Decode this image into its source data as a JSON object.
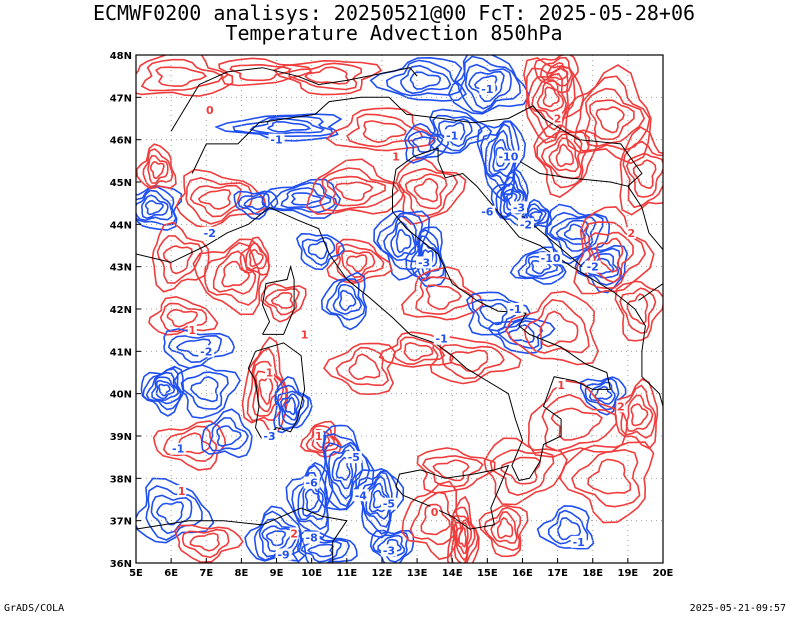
{
  "title": {
    "line1": "ECMWF0200 analisys: 20250521@00 FcT: 2025-05-28+06",
    "line2": "Temperature Advection 850hPa"
  },
  "footer": {
    "left": "GrADS/COLA",
    "right": "2025-05-21-09:57"
  },
  "map": {
    "lon_labels": [
      "5E",
      "6E",
      "7E",
      "8E",
      "9E",
      "10E",
      "11E",
      "12E",
      "13E",
      "14E",
      "15E",
      "16E",
      "17E",
      "18E",
      "19E",
      "20E"
    ],
    "lat_labels": [
      "48N",
      "47N",
      "46N",
      "45N",
      "44N",
      "43N",
      "42N",
      "41N",
      "40N",
      "39N",
      "38N",
      "37N",
      "36N"
    ],
    "lon_range": [
      5,
      20
    ],
    "lat_range": [
      36,
      48
    ],
    "grid": true,
    "colors": {
      "warm_advection": "#f03c3c",
      "cold_advection": "#2050f0",
      "coastline": "#000000",
      "grid": "#a0a0a0"
    },
    "contour_labels": [
      {
        "text": "0",
        "lon": 7.1,
        "lat": 46.7,
        "sign": "warm"
      },
      {
        "text": "-1",
        "lon": 9.0,
        "lat": 46.0,
        "sign": "cold"
      },
      {
        "text": "1",
        "lon": 12.4,
        "lat": 45.6,
        "sign": "warm"
      },
      {
        "text": "-1",
        "lon": 14.0,
        "lat": 46.1,
        "sign": "cold"
      },
      {
        "text": "-1",
        "lon": 15.0,
        "lat": 47.2,
        "sign": "cold"
      },
      {
        "text": "-10",
        "lon": 15.6,
        "lat": 45.6,
        "sign": "cold"
      },
      {
        "text": "2",
        "lon": 17.0,
        "lat": 46.5,
        "sign": "warm"
      },
      {
        "text": "-3",
        "lon": 15.9,
        "lat": 44.4,
        "sign": "cold"
      },
      {
        "text": "-6",
        "lon": 15.0,
        "lat": 44.3,
        "sign": "cold"
      },
      {
        "text": "-2",
        "lon": 16.1,
        "lat": 44.0,
        "sign": "cold"
      },
      {
        "text": "-2",
        "lon": 7.1,
        "lat": 43.8,
        "sign": "cold"
      },
      {
        "text": "-10",
        "lon": 16.8,
        "lat": 43.2,
        "sign": "cold"
      },
      {
        "text": "-2",
        "lon": 18.0,
        "lat": 43.0,
        "sign": "cold"
      },
      {
        "text": "2",
        "lon": 19.1,
        "lat": 43.8,
        "sign": "warm"
      },
      {
        "text": "-3",
        "lon": 13.2,
        "lat": 43.1,
        "sign": "cold"
      },
      {
        "text": "1",
        "lon": 6.6,
        "lat": 41.5,
        "sign": "warm"
      },
      {
        "text": "-2",
        "lon": 7.0,
        "lat": 41.0,
        "sign": "cold"
      },
      {
        "text": "-1",
        "lon": 15.8,
        "lat": 42.0,
        "sign": "cold"
      },
      {
        "text": "1",
        "lon": 9.8,
        "lat": 41.4,
        "sign": "warm"
      },
      {
        "text": "-1",
        "lon": 13.7,
        "lat": 41.3,
        "sign": "cold"
      },
      {
        "text": "1",
        "lon": 8.8,
        "lat": 40.5,
        "sign": "warm"
      },
      {
        "text": "1",
        "lon": 17.1,
        "lat": 40.2,
        "sign": "warm"
      },
      {
        "text": "2",
        "lon": 18.8,
        "lat": 39.7,
        "sign": "warm"
      },
      {
        "text": "-3",
        "lon": 8.8,
        "lat": 39.0,
        "sign": "cold"
      },
      {
        "text": "1",
        "lon": 10.2,
        "lat": 39.0,
        "sign": "warm"
      },
      {
        "text": "-1",
        "lon": 6.2,
        "lat": 38.7,
        "sign": "cold"
      },
      {
        "text": "-5",
        "lon": 11.2,
        "lat": 38.5,
        "sign": "cold"
      },
      {
        "text": "-6",
        "lon": 10.0,
        "lat": 37.9,
        "sign": "cold"
      },
      {
        "text": "-4",
        "lon": 11.4,
        "lat": 37.6,
        "sign": "cold"
      },
      {
        "text": "-5",
        "lon": 12.2,
        "lat": 37.4,
        "sign": "cold"
      },
      {
        "text": "-1",
        "lon": 17.6,
        "lat": 36.5,
        "sign": "cold"
      },
      {
        "text": "-8",
        "lon": 10.0,
        "lat": 36.6,
        "sign": "cold"
      },
      {
        "text": "-9",
        "lon": 9.2,
        "lat": 36.2,
        "sign": "cold"
      },
      {
        "text": "-3",
        "lon": 12.2,
        "lat": 36.3,
        "sign": "cold"
      },
      {
        "text": "0",
        "lon": 13.5,
        "lat": 37.2,
        "sign": "warm"
      },
      {
        "text": "1",
        "lon": 6.3,
        "lat": 37.7,
        "sign": "warm"
      },
      {
        "text": "2",
        "lon": 9.5,
        "lat": 36.7,
        "sign": "warm"
      }
    ]
  }
}
